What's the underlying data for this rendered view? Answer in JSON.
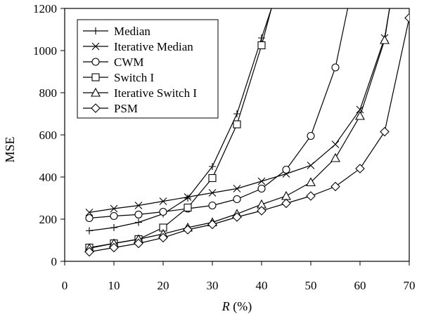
{
  "chart_data": {
    "type": "line",
    "xlabel": {
      "italic": "R",
      "rest": " (%)"
    },
    "ylabel": "MSE",
    "xlim": [
      0,
      70
    ],
    "ylim": [
      0,
      1200
    ],
    "xticks": [
      0,
      10,
      20,
      30,
      40,
      50,
      60,
      70
    ],
    "yticks": [
      0,
      200,
      400,
      600,
      800,
      1000,
      1200
    ],
    "legend": "top-left",
    "grid": false,
    "series": [
      {
        "name": "Median",
        "marker": "plus",
        "x": [
          5,
          10,
          15,
          20,
          25,
          30,
          35,
          40,
          42
        ],
        "y": [
          145,
          160,
          185,
          225,
          300,
          450,
          700,
          1060,
          1200
        ]
      },
      {
        "name": "Iterative Median",
        "marker": "cross",
        "x": [
          5,
          10,
          15,
          20,
          25,
          30,
          35,
          40,
          45,
          50,
          55,
          60,
          65,
          66
        ],
        "y": [
          232,
          250,
          265,
          285,
          305,
          325,
          345,
          380,
          415,
          455,
          555,
          720,
          1060,
          1200
        ]
      },
      {
        "name": "CWM",
        "marker": "circle",
        "x": [
          5,
          10,
          15,
          20,
          25,
          30,
          35,
          40,
          45,
          50,
          55,
          57.5
        ],
        "y": [
          205,
          215,
          222,
          235,
          250,
          265,
          295,
          345,
          435,
          595,
          920,
          1200
        ]
      },
      {
        "name": "Switch I",
        "marker": "square",
        "x": [
          5,
          10,
          15,
          20,
          25,
          30,
          35,
          40,
          42
        ],
        "y": [
          65,
          85,
          105,
          160,
          255,
          395,
          650,
          1025,
          1200
        ]
      },
      {
        "name": "Iterative Switch I",
        "marker": "triangle",
        "x": [
          5,
          10,
          15,
          20,
          25,
          30,
          35,
          40,
          45,
          50,
          55,
          60,
          65,
          66
        ],
        "y": [
          62,
          85,
          105,
          130,
          160,
          185,
          225,
          270,
          310,
          375,
          490,
          690,
          1050,
          1200
        ]
      },
      {
        "name": "PSM",
        "marker": "diamond",
        "x": [
          5,
          10,
          15,
          20,
          25,
          30,
          35,
          40,
          45,
          50,
          55,
          60,
          65,
          70
        ],
        "y": [
          45,
          65,
          85,
          112,
          150,
          175,
          210,
          240,
          275,
          310,
          355,
          440,
          615,
          1155
        ]
      }
    ]
  }
}
